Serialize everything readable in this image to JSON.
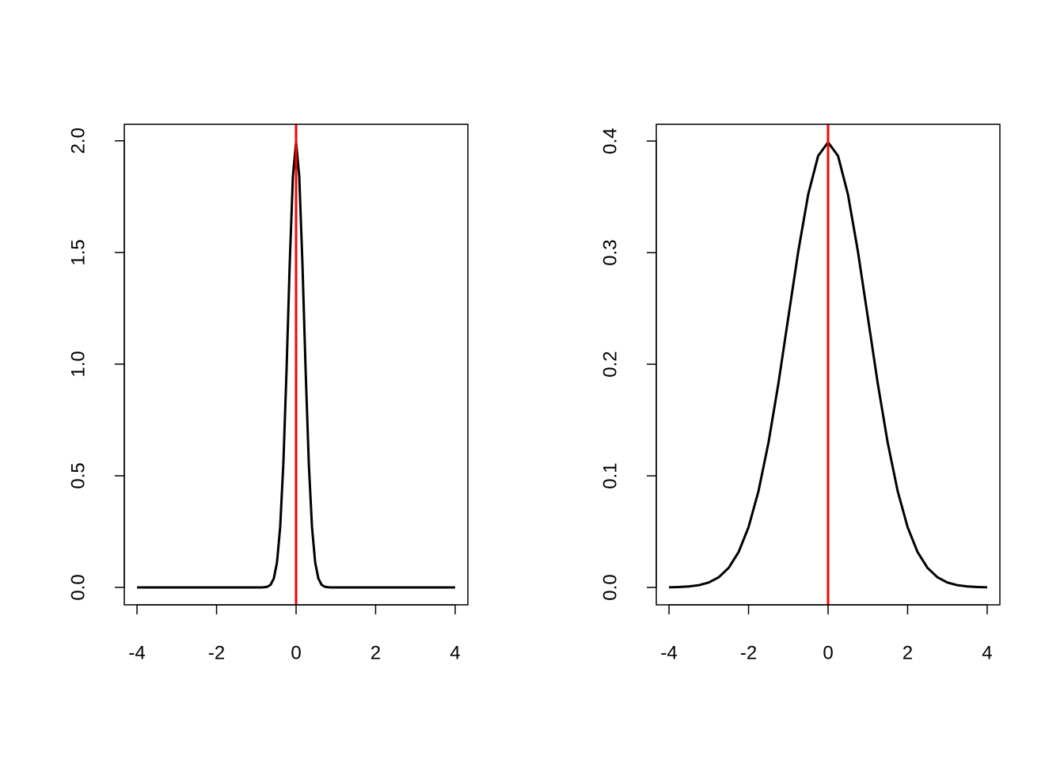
{
  "chart_data": [
    {
      "type": "line",
      "x": [
        -4,
        -0.88,
        -0.8,
        -0.72,
        -0.64,
        -0.56,
        -0.48,
        -0.4,
        -0.32,
        -0.24,
        -0.16,
        -0.08,
        0,
        0.08,
        0.16,
        0.24,
        0.32,
        0.4,
        0.48,
        0.56,
        0.64,
        0.72,
        0.8,
        0.88,
        4
      ],
      "series": [
        {
          "color": "#000000",
          "values": [
            0,
            0,
            0.001,
            0.003,
            0.012,
            0.04,
            0.112,
            0.27,
            0.555,
            0.971,
            1.448,
            1.841,
            1.995,
            1.841,
            1.448,
            0.971,
            0.555,
            0.27,
            0.112,
            0.04,
            0.012,
            0.003,
            0.001,
            0,
            0
          ]
        }
      ],
      "vline": 0,
      "vline_color": "#ff0000",
      "xlim": [
        -4.32,
        4.32
      ],
      "ylim": [
        -0.078,
        2.074
      ],
      "xticks": [
        -4,
        -2,
        0,
        2,
        4
      ],
      "yticks": [
        {
          "value": 0,
          "label": "0.0"
        },
        {
          "value": 0.5,
          "label": "0.5"
        },
        {
          "value": 1,
          "label": "1.0"
        },
        {
          "value": 1.5,
          "label": "1.5"
        },
        {
          "value": 2,
          "label": "2.0"
        }
      ]
    },
    {
      "type": "line",
      "x": [
        -4,
        -3.75,
        -3.5,
        -3.25,
        -3,
        -2.75,
        -2.5,
        -2.25,
        -2,
        -1.75,
        -1.5,
        -1.25,
        -1,
        -0.75,
        -0.5,
        -0.25,
        0,
        0.25,
        0.5,
        0.75,
        1,
        1.25,
        1.5,
        1.75,
        2,
        2.25,
        2.5,
        2.75,
        3,
        3.25,
        3.5,
        3.75,
        4
      ],
      "series": [
        {
          "color": "#000000",
          "values": [
            0.0001,
            0.0004,
            0.0009,
            0.002,
            0.0044,
            0.0091,
            0.0175,
            0.0317,
            0.054,
            0.0863,
            0.1295,
            0.1826,
            0.242,
            0.3011,
            0.3521,
            0.3867,
            0.3989,
            0.3867,
            0.3521,
            0.3011,
            0.242,
            0.1826,
            0.1295,
            0.0863,
            0.054,
            0.0317,
            0.0175,
            0.0091,
            0.0044,
            0.002,
            0.0009,
            0.0004,
            0.0001
          ]
        }
      ],
      "vline": 0,
      "vline_color": "#ff0000",
      "xlim": [
        -4.32,
        4.32
      ],
      "ylim": [
        -0.0156,
        0.415
      ],
      "xticks": [
        -4,
        -2,
        0,
        2,
        4
      ],
      "yticks": [
        {
          "value": 0,
          "label": "0.0"
        },
        {
          "value": 0.1,
          "label": "0.1"
        },
        {
          "value": 0.2,
          "label": "0.2"
        },
        {
          "value": 0.3,
          "label": "0.3"
        },
        0.4
      ]
    }
  ]
}
